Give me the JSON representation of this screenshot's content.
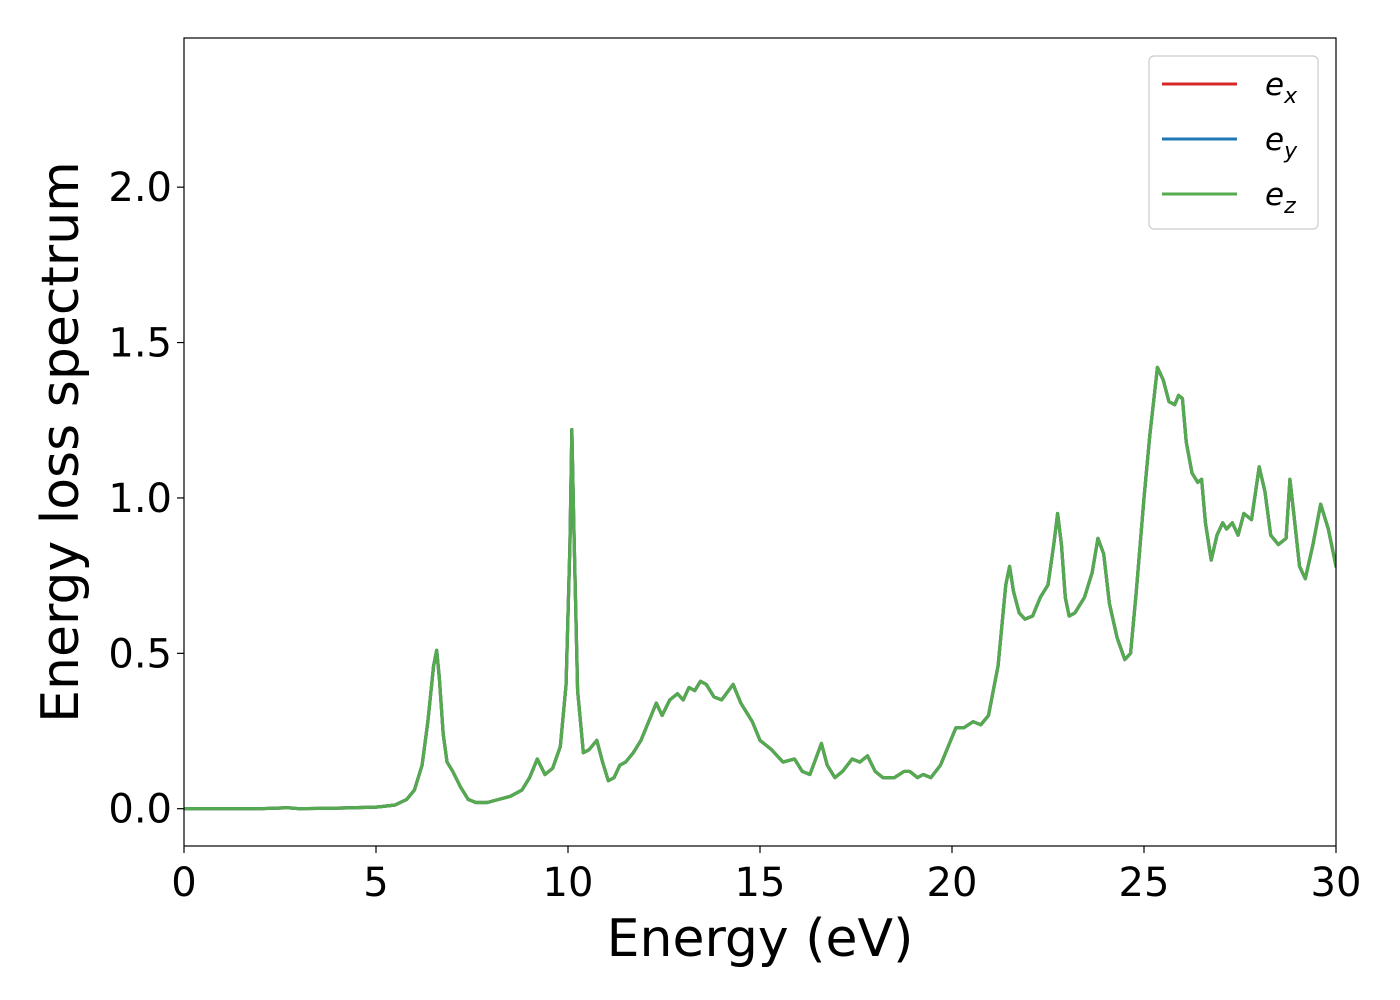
{
  "chart_data": {
    "type": "line",
    "title": "",
    "xlabel": "Energy (eV)",
    "ylabel": "Energy loss spectrum",
    "xlim": [
      0,
      30
    ],
    "ylim": [
      -0.12,
      2.48
    ],
    "xticks": [
      0,
      5,
      10,
      15,
      20,
      25,
      30
    ],
    "xtick_labels": [
      "0",
      "5",
      "10",
      "15",
      "20",
      "25",
      "30"
    ],
    "yticks": [
      0.0,
      0.5,
      1.0,
      1.5,
      2.0
    ],
    "ytick_labels": [
      "0.0",
      "0.5",
      "1.0",
      "1.5",
      "2.0"
    ],
    "grid": false,
    "legend_position": "top-right",
    "x": [
      0,
      1,
      2,
      2.7,
      3,
      4,
      5,
      5.5,
      5.8,
      6.0,
      6.2,
      6.35,
      6.5,
      6.58,
      6.65,
      6.75,
      6.85,
      7.0,
      7.2,
      7.4,
      7.6,
      7.9,
      8.2,
      8.5,
      8.8,
      9.0,
      9.2,
      9.4,
      9.6,
      9.8,
      9.95,
      10.05,
      10.1,
      10.15,
      10.25,
      10.4,
      10.55,
      10.75,
      10.9,
      11.05,
      11.2,
      11.35,
      11.5,
      11.7,
      11.9,
      12.1,
      12.3,
      12.45,
      12.65,
      12.85,
      13.0,
      13.15,
      13.3,
      13.45,
      13.6,
      13.8,
      14.0,
      14.3,
      14.5,
      14.65,
      14.8,
      15.0,
      15.3,
      15.6,
      15.9,
      16.1,
      16.3,
      16.45,
      16.6,
      16.75,
      16.95,
      17.15,
      17.4,
      17.6,
      17.8,
      18.0,
      18.2,
      18.5,
      18.75,
      18.9,
      19.1,
      19.25,
      19.45,
      19.7,
      19.9,
      20.1,
      20.3,
      20.55,
      20.75,
      20.95,
      21.2,
      21.4,
      21.5,
      21.6,
      21.75,
      21.9,
      22.1,
      22.3,
      22.5,
      22.65,
      22.75,
      22.85,
      22.95,
      23.05,
      23.2,
      23.45,
      23.65,
      23.8,
      23.95,
      24.1,
      24.3,
      24.5,
      24.65,
      24.8,
      25.0,
      25.15,
      25.35,
      25.5,
      25.65,
      25.8,
      25.9,
      26.0,
      26.1,
      26.25,
      26.4,
      26.5,
      26.6,
      26.75,
      26.9,
      27.05,
      27.15,
      27.3,
      27.45,
      27.6,
      27.8,
      28.0,
      28.15,
      28.3,
      28.5,
      28.7,
      28.8,
      28.9,
      29.05,
      29.2,
      29.4,
      29.6,
      29.8,
      30.0
    ],
    "series": [
      {
        "name": "e_x",
        "color": "#d62728",
        "values": [
          0,
          0,
          0,
          0.003,
          0,
          0.002,
          0.005,
          0.012,
          0.03,
          0.06,
          0.14,
          0.28,
          0.46,
          0.51,
          0.42,
          0.24,
          0.15,
          0.12,
          0.07,
          0.03,
          0.02,
          0.02,
          0.03,
          0.04,
          0.06,
          0.1,
          0.16,
          0.11,
          0.13,
          0.2,
          0.4,
          0.85,
          1.22,
          0.92,
          0.38,
          0.18,
          0.19,
          0.22,
          0.15,
          0.09,
          0.1,
          0.14,
          0.15,
          0.18,
          0.22,
          0.28,
          0.34,
          0.3,
          0.35,
          0.37,
          0.35,
          0.39,
          0.38,
          0.41,
          0.4,
          0.36,
          0.35,
          0.4,
          0.34,
          0.31,
          0.28,
          0.22,
          0.19,
          0.15,
          0.16,
          0.12,
          0.11,
          0.16,
          0.21,
          0.14,
          0.1,
          0.12,
          0.16,
          0.15,
          0.17,
          0.12,
          0.1,
          0.1,
          0.12,
          0.12,
          0.1,
          0.11,
          0.1,
          0.14,
          0.2,
          0.26,
          0.26,
          0.28,
          0.27,
          0.3,
          0.46,
          0.72,
          0.78,
          0.7,
          0.63,
          0.61,
          0.62,
          0.68,
          0.72,
          0.85,
          0.95,
          0.85,
          0.68,
          0.62,
          0.63,
          0.68,
          0.76,
          0.87,
          0.82,
          0.66,
          0.55,
          0.48,
          0.5,
          0.7,
          1.0,
          1.2,
          1.42,
          1.38,
          1.31,
          1.3,
          1.33,
          1.32,
          1.18,
          1.08,
          1.05,
          1.06,
          0.92,
          0.8,
          0.88,
          0.92,
          0.9,
          0.92,
          0.88,
          0.95,
          0.93,
          1.1,
          1.02,
          0.88,
          0.85,
          0.87,
          1.06,
          0.95,
          0.78,
          0.74,
          0.85,
          0.98,
          0.9,
          0.78
        ]
      },
      {
        "name": "e_y",
        "color": "#1f77b4",
        "values": [
          0,
          0,
          0,
          0.003,
          0,
          0.002,
          0.005,
          0.012,
          0.03,
          0.06,
          0.14,
          0.28,
          0.46,
          0.51,
          0.42,
          0.24,
          0.15,
          0.12,
          0.07,
          0.03,
          0.02,
          0.02,
          0.03,
          0.04,
          0.06,
          0.1,
          0.16,
          0.11,
          0.13,
          0.2,
          0.4,
          0.85,
          1.22,
          0.92,
          0.38,
          0.18,
          0.19,
          0.22,
          0.15,
          0.09,
          0.1,
          0.14,
          0.15,
          0.18,
          0.22,
          0.28,
          0.34,
          0.3,
          0.35,
          0.37,
          0.35,
          0.39,
          0.38,
          0.41,
          0.4,
          0.36,
          0.35,
          0.4,
          0.34,
          0.31,
          0.28,
          0.22,
          0.19,
          0.15,
          0.16,
          0.12,
          0.11,
          0.16,
          0.21,
          0.14,
          0.1,
          0.12,
          0.16,
          0.15,
          0.17,
          0.12,
          0.1,
          0.1,
          0.12,
          0.12,
          0.1,
          0.11,
          0.1,
          0.14,
          0.2,
          0.26,
          0.26,
          0.28,
          0.27,
          0.3,
          0.46,
          0.72,
          0.78,
          0.7,
          0.63,
          0.61,
          0.62,
          0.68,
          0.72,
          0.85,
          0.95,
          0.85,
          0.68,
          0.62,
          0.63,
          0.68,
          0.76,
          0.87,
          0.82,
          0.66,
          0.55,
          0.48,
          0.5,
          0.7,
          1.0,
          1.2,
          1.42,
          1.38,
          1.31,
          1.3,
          1.33,
          1.32,
          1.18,
          1.08,
          1.05,
          1.06,
          0.92,
          0.8,
          0.88,
          0.92,
          0.9,
          0.92,
          0.88,
          0.95,
          0.93,
          1.1,
          1.02,
          0.88,
          0.85,
          0.87,
          1.06,
          0.95,
          0.78,
          0.74,
          0.85,
          0.98,
          0.9,
          0.78
        ]
      },
      {
        "name": "e_z",
        "color": "#55aa4f",
        "values": [
          0,
          0,
          0,
          0.003,
          0,
          0.002,
          0.005,
          0.012,
          0.03,
          0.06,
          0.14,
          0.28,
          0.46,
          0.51,
          0.42,
          0.24,
          0.15,
          0.12,
          0.07,
          0.03,
          0.02,
          0.02,
          0.03,
          0.04,
          0.06,
          0.1,
          0.16,
          0.11,
          0.13,
          0.2,
          0.4,
          0.85,
          1.22,
          0.92,
          0.38,
          0.18,
          0.19,
          0.22,
          0.15,
          0.09,
          0.1,
          0.14,
          0.15,
          0.18,
          0.22,
          0.28,
          0.34,
          0.3,
          0.35,
          0.37,
          0.35,
          0.39,
          0.38,
          0.41,
          0.4,
          0.36,
          0.35,
          0.4,
          0.34,
          0.31,
          0.28,
          0.22,
          0.19,
          0.15,
          0.16,
          0.12,
          0.11,
          0.16,
          0.21,
          0.14,
          0.1,
          0.12,
          0.16,
          0.15,
          0.17,
          0.12,
          0.1,
          0.1,
          0.12,
          0.12,
          0.1,
          0.11,
          0.1,
          0.14,
          0.2,
          0.26,
          0.26,
          0.28,
          0.27,
          0.3,
          0.46,
          0.72,
          0.78,
          0.7,
          0.63,
          0.61,
          0.62,
          0.68,
          0.72,
          0.85,
          0.95,
          0.85,
          0.68,
          0.62,
          0.63,
          0.68,
          0.76,
          0.87,
          0.82,
          0.66,
          0.55,
          0.48,
          0.5,
          0.7,
          1.0,
          1.2,
          1.42,
          1.38,
          1.31,
          1.3,
          1.33,
          1.32,
          1.18,
          1.08,
          1.05,
          1.06,
          0.92,
          0.8,
          0.88,
          0.92,
          0.9,
          0.92,
          0.88,
          0.95,
          0.93,
          1.1,
          1.02,
          0.88,
          0.85,
          0.87,
          1.06,
          0.95,
          0.78,
          0.74,
          0.85,
          0.98,
          0.9,
          0.78
        ]
      }
    ],
    "legend": [
      {
        "base": "e",
        "sub": "x",
        "color": "#d62728"
      },
      {
        "base": "e",
        "sub": "y",
        "color": "#1f77b4"
      },
      {
        "base": "e",
        "sub": "z",
        "color": "#55aa4f"
      }
    ]
  }
}
